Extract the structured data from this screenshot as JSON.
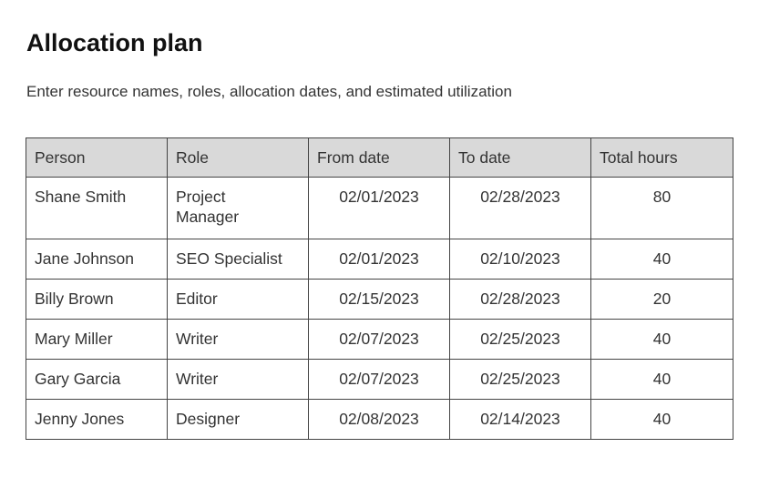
{
  "title": "Allocation plan",
  "subtitle": "Enter resource names, roles, allocation dates, and estimated utilization",
  "table": {
    "headers": [
      "Person",
      "Role",
      "From date",
      "To date",
      "Total hours"
    ],
    "rows": [
      [
        "Shane Smith",
        "Project Manager",
        "02/01/2023",
        "02/28/2023",
        "80"
      ],
      [
        "Jane Johnson",
        "SEO Specialist",
        "02/01/2023",
        "02/10/2023",
        "40"
      ],
      [
        "Billy Brown",
        "Editor",
        "02/15/2023",
        "02/28/2023",
        "20"
      ],
      [
        "Mary Miller",
        "Writer",
        "02/07/2023",
        "02/25/2023",
        "40"
      ],
      [
        "Gary Garcia",
        "Writer",
        "02/07/2023",
        "02/25/2023",
        "40"
      ],
      [
        "Jenny Jones",
        "Designer",
        "02/08/2023",
        "02/14/2023",
        "40"
      ]
    ]
  }
}
